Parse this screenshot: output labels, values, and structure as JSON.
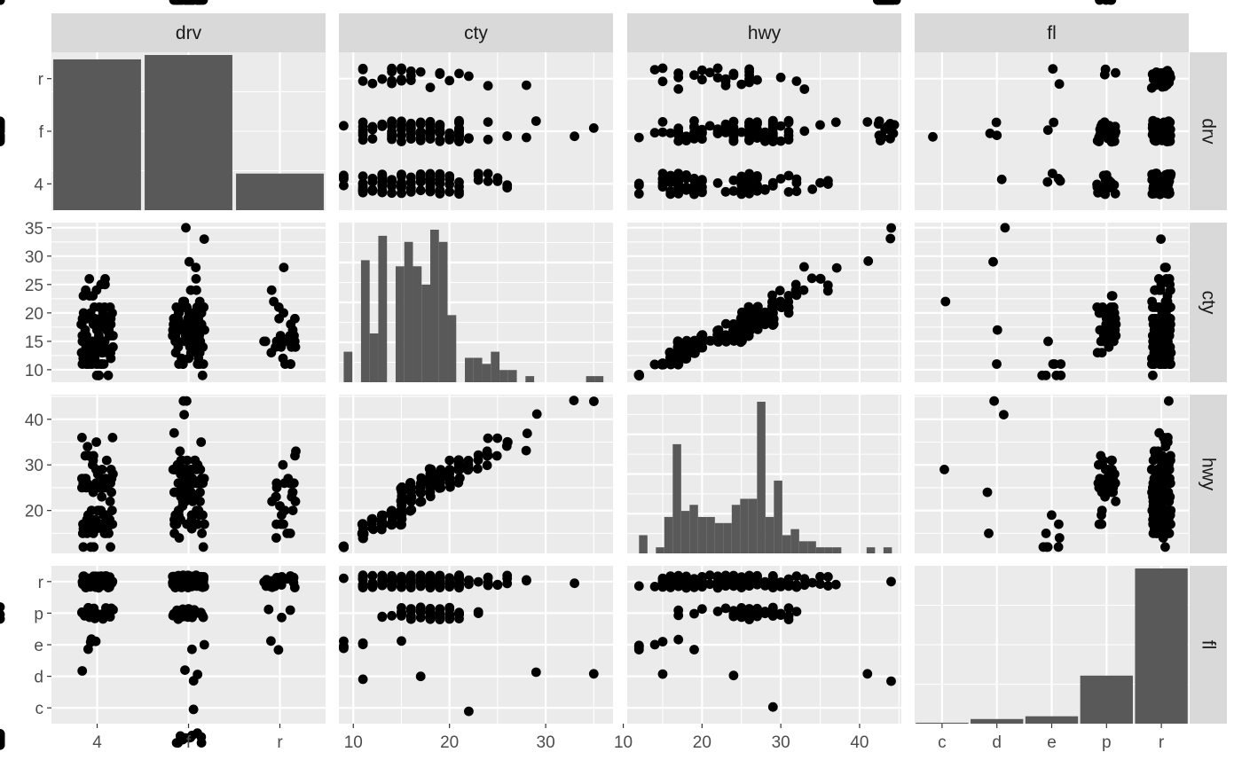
{
  "chart_data": {
    "type": "scatter",
    "variables": [
      "drv",
      "cty",
      "hwy",
      "fl"
    ],
    "colors": {
      "panel": "#ebebeb",
      "grid_major": "#ffffff",
      "strip": "#d9d9d9",
      "bar": "#595959",
      "point": "#000000",
      "strip_text": "#1a1a1a",
      "tick_text": "#4d4d4d"
    },
    "grid": true,
    "axes": {
      "drv": {
        "kind": "discrete",
        "levels": [
          "4",
          "f",
          "r"
        ],
        "tick_labels": [
          "4",
          "f",
          "r"
        ]
      },
      "cty": {
        "kind": "continuous",
        "xlim": [
          8.5,
          37
        ],
        "x_ticks": [
          10,
          20,
          30
        ],
        "ylim": [
          7.8,
          35.9
        ],
        "y_ticks": [
          10,
          15,
          20,
          25,
          30,
          35
        ]
      },
      "hwy": {
        "kind": "continuous",
        "xlim": [
          10.5,
          45.3
        ],
        "x_ticks": [
          10,
          20,
          30,
          40
        ],
        "ylim": [
          10.6,
          45.4
        ],
        "y_ticks": [
          20,
          30,
          40
        ]
      },
      "fl": {
        "kind": "discrete",
        "levels": [
          "c",
          "d",
          "e",
          "p",
          "r"
        ],
        "tick_labels": [
          "c",
          "d",
          "e",
          "p",
          "r"
        ]
      }
    },
    "diagonal": {
      "drv": {
        "type": "bar",
        "categories": [
          "4",
          "f",
          "r"
        ],
        "values": [
          103,
          106,
          25
        ]
      },
      "fl": {
        "type": "bar",
        "categories": [
          "c",
          "d",
          "e",
          "p",
          "r"
        ],
        "values": [
          1,
          5,
          8,
          52,
          168
        ]
      },
      "cty": {
        "type": "histogram",
        "bins": 30,
        "bin_starts": [
          9,
          9.9,
          10.8,
          11.7,
          12.6,
          13.5,
          14.4,
          15.3,
          16.2,
          17.1,
          18.0,
          18.9,
          19.8,
          20.7,
          21.6,
          22.5,
          23.4,
          24.3,
          25.2,
          26.1,
          27.0,
          27.9,
          28.8,
          29.7,
          30.6,
          31.5,
          32.4,
          33.3,
          34.2,
          35.1
        ],
        "bin_width": 0.9,
        "counts": [
          5,
          0,
          20,
          8,
          24,
          0,
          19,
          23,
          19,
          16,
          25,
          23,
          11,
          0,
          4,
          4,
          3,
          5,
          2,
          2,
          0,
          1,
          0,
          0,
          0,
          0,
          0,
          0,
          1,
          1
        ]
      },
      "hwy": {
        "type": "histogram",
        "bins": 30,
        "bin_starts": [
          12,
          13.07,
          14.14,
          15.21,
          16.28,
          17.35,
          18.42,
          19.49,
          20.56,
          21.63,
          22.7,
          23.77,
          24.84,
          25.91,
          26.98,
          28.05,
          29.12,
          30.19,
          31.26,
          32.33,
          33.4,
          34.47,
          35.54,
          36.61,
          37.68,
          38.75,
          39.82,
          40.89,
          41.96,
          43.03
        ],
        "bin_width": 1.07,
        "counts": [
          3,
          0,
          1,
          6,
          18,
          7,
          8,
          6,
          6,
          5,
          5,
          8,
          9,
          9,
          25,
          6,
          12,
          3,
          4,
          2,
          2,
          1,
          1,
          1,
          0,
          0,
          0,
          1,
          0,
          1
        ]
      }
    },
    "data": {
      "drv": [
        "f",
        "f",
        "f",
        "f",
        "f",
        "f",
        "f",
        "4",
        "4",
        "4",
        "4",
        "4",
        "4",
        "4",
        "4",
        "4",
        "4",
        "4",
        "4",
        "r",
        "r",
        "r",
        "r",
        "r",
        "r",
        "r",
        "r",
        "r",
        "r",
        "r",
        "r",
        "r",
        "r",
        "r",
        "f",
        "f",
        "f",
        "f",
        "f",
        "f",
        "f",
        "f",
        "f",
        "f",
        "f",
        "f",
        "f",
        "f",
        "f",
        "f",
        "f",
        "f",
        "f",
        "f",
        "4",
        "4",
        "4",
        "4",
        "4",
        "4",
        "4",
        "4",
        "4",
        "4",
        "4",
        "4",
        "4",
        "4",
        "4",
        "4",
        "4",
        "4",
        "4",
        "4",
        "4",
        "4",
        "4",
        "4",
        "4",
        "4",
        "4",
        "4",
        "4",
        "4",
        "4",
        "4",
        "4",
        "4",
        "4",
        "4",
        "4",
        "4",
        "r",
        "r",
        "r",
        "r",
        "r",
        "r",
        "r",
        "r",
        "r",
        "4",
        "4",
        "4",
        "4",
        "4",
        "4",
        "4",
        "4",
        "4",
        "4",
        "4",
        "f",
        "f",
        "f",
        "f",
        "f",
        "f",
        "f",
        "f",
        "f",
        "f",
        "f",
        "f",
        "f",
        "f",
        "f",
        "f",
        "f",
        "f",
        "f",
        "f",
        "f",
        "f",
        "f",
        "f",
        "f",
        "f",
        "f",
        "4",
        "4",
        "4",
        "4",
        "4",
        "4",
        "4",
        "4",
        "4",
        "4",
        "4",
        "4",
        "4",
        "4",
        "4",
        "4",
        "4",
        "4",
        "4",
        "4",
        "4",
        "4",
        "4",
        "4",
        "r",
        "r",
        "r",
        "r",
        "4",
        "4",
        "4",
        "4",
        "f",
        "f",
        "f",
        "f",
        "f",
        "f",
        "f",
        "f",
        "f",
        "f",
        "f",
        "f",
        "f",
        "f",
        "f",
        "f",
        "f",
        "f",
        "f",
        "f",
        "f",
        "f",
        "f",
        "f",
        "f",
        "f",
        "4",
        "4",
        "4",
        "4",
        "4",
        "4",
        "4",
        "4",
        "4",
        "4",
        "f",
        "f",
        "f",
        "f",
        "f",
        "f",
        "f",
        "f",
        "f",
        "f",
        "f",
        "f",
        "f",
        "f",
        "f",
        "f",
        "f",
        "f",
        "f",
        "f",
        "f",
        "f",
        "f",
        "f",
        "f",
        "f",
        "f",
        "f",
        "f",
        "f",
        "f",
        "f",
        "f",
        "f",
        "f",
        "f",
        "f",
        "f",
        "f",
        "f",
        "f"
      ],
      "cty": [
        18,
        21,
        20,
        21,
        16,
        18,
        18,
        18,
        16,
        20,
        19,
        15,
        17,
        17,
        15,
        15,
        17,
        16,
        14,
        11,
        14,
        13,
        12,
        16,
        15,
        16,
        15,
        15,
        14,
        11,
        11,
        14,
        19,
        22,
        18,
        18,
        17,
        18,
        17,
        16,
        16,
        17,
        17,
        11,
        15,
        15,
        16,
        16,
        15,
        14,
        13,
        14,
        14,
        14,
        9,
        11,
        11,
        13,
        13,
        9,
        13,
        11,
        13,
        11,
        12,
        9,
        13,
        13,
        12,
        9,
        11,
        11,
        13,
        11,
        11,
        11,
        12,
        14,
        15,
        14,
        13,
        13,
        13,
        14,
        14,
        13,
        13,
        13,
        11,
        13,
        18,
        18,
        17,
        16,
        15,
        15,
        15,
        15,
        14,
        28,
        24,
        25,
        23,
        24,
        26,
        25,
        24,
        21,
        18,
        18,
        21,
        21,
        18,
        18,
        19,
        19,
        19,
        20,
        20,
        17,
        16,
        17,
        17,
        15,
        15,
        14,
        9,
        14,
        13,
        11,
        11,
        12,
        12,
        11,
        11,
        11,
        12,
        14,
        13,
        13,
        13,
        21,
        19,
        23,
        23,
        19,
        19,
        18,
        19,
        19,
        14,
        15,
        14,
        12,
        18,
        16,
        17,
        18,
        16,
        18,
        18,
        20,
        19,
        20,
        18,
        21,
        19,
        19,
        19,
        20,
        20,
        19,
        20,
        15,
        16,
        15,
        15,
        16,
        14,
        21,
        21,
        21,
        21,
        18,
        18,
        19,
        21,
        21,
        21,
        22,
        18,
        18,
        18,
        24,
        24,
        26,
        28,
        26,
        11,
        13,
        15,
        16,
        17,
        15,
        15,
        15,
        16,
        21,
        19,
        21,
        22,
        17,
        33,
        21,
        19,
        22,
        21,
        21,
        21,
        16,
        17,
        35,
        29,
        21,
        19,
        20,
        20,
        21,
        18,
        19,
        21,
        16,
        18,
        17
      ],
      "hwy": [
        29,
        29,
        31,
        30,
        26,
        26,
        27,
        26,
        25,
        28,
        27,
        25,
        25,
        25,
        25,
        24,
        25,
        23,
        20,
        15,
        20,
        17,
        17,
        26,
        23,
        26,
        25,
        24,
        19,
        14,
        15,
        17,
        27,
        30,
        26,
        29,
        26,
        24,
        24,
        22,
        22,
        24,
        24,
        17,
        22,
        21,
        23,
        23,
        19,
        18,
        17,
        17,
        19,
        19,
        12,
        17,
        15,
        17,
        17,
        12,
        17,
        16,
        18,
        15,
        16,
        12,
        17,
        17,
        16,
        12,
        15,
        16,
        17,
        15,
        17,
        17,
        18,
        17,
        19,
        17,
        19,
        19,
        17,
        17,
        17,
        16,
        16,
        17,
        15,
        17,
        26,
        25,
        26,
        24,
        21,
        22,
        23,
        22,
        20,
        33,
        32,
        32,
        29,
        32,
        34,
        36,
        36,
        29,
        26,
        27,
        30,
        31,
        26,
        26,
        28,
        26,
        29,
        28,
        27,
        24,
        24,
        24,
        22,
        19,
        20,
        17,
        12,
        19,
        18,
        14,
        15,
        18,
        18,
        15,
        17,
        16,
        18,
        17,
        19,
        19,
        17,
        29,
        27,
        31,
        32,
        27,
        26,
        26,
        25,
        25,
        17,
        17,
        20,
        18,
        26,
        26,
        27,
        28,
        25,
        25,
        24,
        27,
        25,
        26,
        23,
        26,
        26,
        26,
        26,
        25,
        27,
        25,
        27,
        20,
        20,
        19,
        17,
        20,
        17,
        29,
        27,
        31,
        31,
        26,
        26,
        28,
        27,
        29,
        31,
        31,
        26,
        26,
        27,
        30,
        33,
        35,
        37,
        35,
        15,
        18,
        20,
        20,
        22,
        17,
        19,
        18,
        20,
        29,
        26,
        29,
        29,
        24,
        44,
        29,
        26,
        29,
        29,
        29,
        29,
        23,
        24,
        44,
        41,
        29,
        26,
        28,
        29,
        29,
        29,
        28,
        29,
        26,
        26,
        26
      ],
      "fl": [
        "p",
        "p",
        "p",
        "p",
        "p",
        "p",
        "p",
        "p",
        "p",
        "p",
        "p",
        "p",
        "p",
        "p",
        "p",
        "p",
        "p",
        "p",
        "r",
        "e",
        "r",
        "r",
        "r",
        "r",
        "r",
        "p",
        "p",
        "p",
        "r",
        "e",
        "r",
        "r",
        "r",
        "r",
        "r",
        "r",
        "r",
        "r",
        "r",
        "r",
        "r",
        "r",
        "r",
        "e",
        "r",
        "r",
        "r",
        "r",
        "r",
        "r",
        "r",
        "r",
        "r",
        "r",
        "e",
        "r",
        "r",
        "r",
        "r",
        "e",
        "r",
        "r",
        "r",
        "r",
        "r",
        "e",
        "r",
        "r",
        "r",
        "e",
        "r",
        "r",
        "r",
        "d",
        "r",
        "r",
        "r",
        "r",
        "r",
        "r",
        "r",
        "r",
        "r",
        "r",
        "r",
        "r",
        "r",
        "r",
        "r",
        "r",
        "r",
        "r",
        "r",
        "r",
        "r",
        "r",
        "r",
        "r",
        "r",
        "r",
        "r",
        "r",
        "r",
        "r",
        "r",
        "r",
        "r",
        "r",
        "p",
        "p",
        "p",
        "p",
        "p",
        "p",
        "r",
        "p",
        "p",
        "p",
        "p",
        "p",
        "p",
        "p",
        "p",
        "e",
        "p",
        "p",
        "r",
        "r",
        "r",
        "r",
        "r",
        "r",
        "r",
        "r",
        "r",
        "r",
        "r",
        "r",
        "r",
        "p",
        "p",
        "p",
        "p",
        "p",
        "p",
        "r",
        "r",
        "r",
        "r",
        "r",
        "r",
        "r",
        "r",
        "r",
        "r",
        "r",
        "r",
        "r",
        "r",
        "r",
        "r",
        "r",
        "r",
        "r",
        "r",
        "r",
        "r",
        "r",
        "r",
        "r",
        "p",
        "p",
        "p",
        "r",
        "r",
        "r",
        "r",
        "r",
        "r",
        "r",
        "r",
        "r",
        "r",
        "r",
        "r",
        "r",
        "r",
        "r",
        "r",
        "r",
        "r",
        "r",
        "r",
        "r",
        "r",
        "r",
        "r",
        "r",
        "r",
        "r",
        "r",
        "r",
        "r",
        "r",
        "r",
        "r",
        "r",
        "r",
        "r",
        "r",
        "c",
        "d",
        "r",
        "r",
        "r",
        "r",
        "r",
        "r",
        "r",
        "r",
        "r",
        "d",
        "d",
        "r",
        "r",
        "r",
        "r",
        "r",
        "r",
        "r",
        "r",
        "p",
        "p",
        "p",
        "p",
        "p"
      ]
    }
  }
}
